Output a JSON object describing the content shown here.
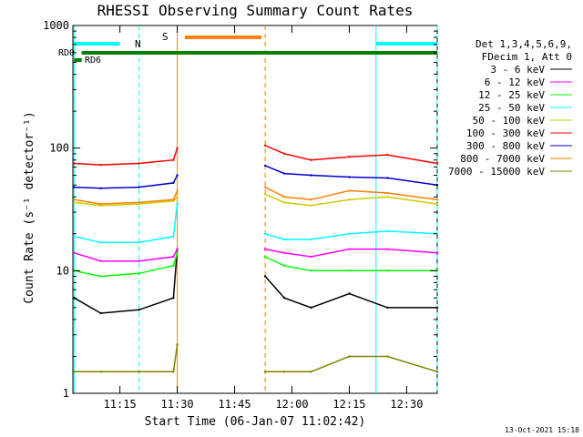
{
  "chart_data": {
    "type": "line",
    "title": "RHESSI Observing Summary Count Rates",
    "xlabel": "Start Time (06-Jan-07 11:02:42)",
    "ylabel": "Count Rate (s⁻¹ detector⁻¹)",
    "ylim": [
      1,
      1000
    ],
    "yscale": "log",
    "y_ticks": [
      1,
      10,
      100,
      1000
    ],
    "xlim": [
      "11:02:42",
      "12:38:00"
    ],
    "x_ticks": [
      "11:15",
      "11:30",
      "11:45",
      "12:00",
      "12:15",
      "12:30"
    ],
    "grid": false,
    "legend_position": "right",
    "legend_header": [
      "Det 1,3,4,5,6,9,",
      "FDecim 1, Att 0"
    ],
    "footer_date": "13-Oct-2021 15:18",
    "flag_labels": {
      "rd0": "RD0",
      "rd6": "RD6",
      "n": "N",
      "s": "S"
    },
    "flags": [
      {
        "label": "N",
        "color": "#00ffff",
        "segments": [
          [
            "11:03",
            "11:15"
          ],
          [
            "12:22",
            "12:38"
          ]
        ]
      },
      {
        "label": "S",
        "color": "#ff8000",
        "segments": [
          [
            "11:32",
            "11:52"
          ]
        ]
      },
      {
        "label": "RD0",
        "color": "#008000",
        "segments": [
          [
            "11:05",
            "12:38"
          ]
        ]
      },
      {
        "label": "RD6",
        "color": "#008000",
        "segments": [
          [
            "11:03",
            "11:05"
          ]
        ]
      }
    ],
    "night_start": [
      "11:20",
      "12:38"
    ],
    "night_end": [
      "11:03",
      "12:22"
    ],
    "saa_start": [
      "11:53"
    ],
    "saa_end": [
      "11:30"
    ],
    "gaps": [
      [
        "11:31",
        "11:53"
      ]
    ],
    "series": [
      {
        "name": "3 - 6 keV",
        "color": "#000000",
        "x": [
          "11:03",
          "11:10",
          "11:20",
          "11:29",
          "11:30",
          "11:53",
          "11:58",
          "12:05",
          "12:15",
          "12:25",
          "12:38"
        ],
        "values": [
          6,
          4.5,
          4.8,
          6,
          15,
          9,
          6,
          5,
          6.5,
          5,
          5
        ]
      },
      {
        "name": "6 - 12 keV",
        "color": "#ff00ff",
        "x": [
          "11:03",
          "11:10",
          "11:20",
          "11:29",
          "11:30",
          "11:53",
          "11:58",
          "12:05",
          "12:15",
          "12:25",
          "12:38"
        ],
        "values": [
          14,
          12,
          12,
          13,
          15,
          15,
          14,
          13,
          15,
          15,
          14
        ]
      },
      {
        "name": "12 - 25 keV",
        "color": "#00ff00",
        "x": [
          "11:03",
          "11:10",
          "11:20",
          "11:29",
          "11:30",
          "11:53",
          "11:58",
          "12:05",
          "12:15",
          "12:25",
          "12:38"
        ],
        "values": [
          10,
          9,
          9.5,
          11,
          14,
          13,
          11,
          10,
          10,
          10,
          10
        ]
      },
      {
        "name": "25 - 50 keV",
        "color": "#00ffff",
        "x": [
          "11:03",
          "11:10",
          "11:20",
          "11:29",
          "11:30",
          "11:53",
          "11:58",
          "12:05",
          "12:15",
          "12:25",
          "12:38"
        ],
        "values": [
          19,
          17,
          17,
          19,
          35,
          20,
          18,
          18,
          20,
          21,
          20
        ]
      },
      {
        "name": "50 - 100 keV",
        "color": "#cccc00",
        "x": [
          "11:03",
          "11:10",
          "11:20",
          "11:29",
          "11:30",
          "11:53",
          "11:58",
          "12:05",
          "12:15",
          "12:25",
          "12:38"
        ],
        "values": [
          36,
          34,
          35,
          37,
          40,
          42,
          36,
          34,
          38,
          40,
          35
        ]
      },
      {
        "name": "100 - 300 keV",
        "color": "#ff0000",
        "x": [
          "11:03",
          "11:10",
          "11:20",
          "11:29",
          "11:30",
          "11:53",
          "11:58",
          "12:05",
          "12:15",
          "12:25",
          "12:38"
        ],
        "values": [
          75,
          73,
          75,
          80,
          100,
          105,
          90,
          80,
          85,
          88,
          75
        ]
      },
      {
        "name": "300 - 800 keV",
        "color": "#0000cc",
        "x": [
          "11:03",
          "11:10",
          "11:20",
          "11:29",
          "11:30",
          "11:53",
          "11:58",
          "12:05",
          "12:15",
          "12:25",
          "12:38"
        ],
        "values": [
          48,
          47,
          48,
          52,
          60,
          72,
          62,
          60,
          58,
          57,
          50
        ]
      },
      {
        "name": "800 - 7000 keV",
        "color": "#ff8000",
        "x": [
          "11:03",
          "11:10",
          "11:20",
          "11:29",
          "11:30",
          "11:53",
          "11:58",
          "12:05",
          "12:15",
          "12:25",
          "12:38"
        ],
        "values": [
          38,
          35,
          36,
          38,
          45,
          48,
          40,
          38,
          45,
          43,
          38
        ]
      },
      {
        "name": "7000 - 15000 keV",
        "color": "#808000",
        "x": [
          "11:03",
          "11:10",
          "11:20",
          "11:29",
          "11:30",
          "11:53",
          "11:58",
          "12:05",
          "12:15",
          "12:25",
          "12:38"
        ],
        "values": [
          1.5,
          1.5,
          1.5,
          1.5,
          2.5,
          1.5,
          1.5,
          1.5,
          2,
          2,
          1.5
        ]
      }
    ]
  }
}
